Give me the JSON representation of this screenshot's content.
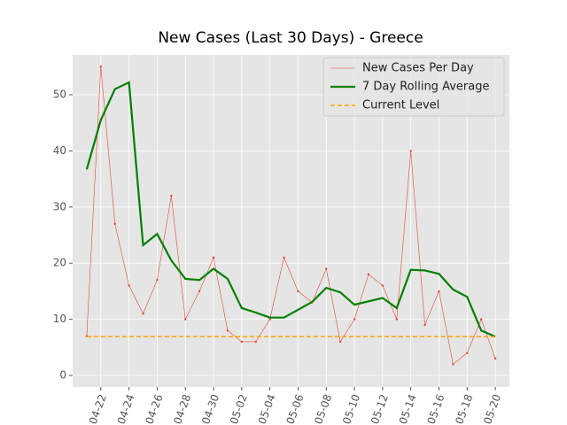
{
  "chart_data": {
    "type": "line",
    "title": "New Cases (Last 30 Days) - Greece",
    "x": [
      "04-21",
      "04-22",
      "04-23",
      "04-24",
      "04-25",
      "04-26",
      "04-27",
      "04-28",
      "04-29",
      "04-30",
      "05-01",
      "05-02",
      "05-03",
      "05-04",
      "05-05",
      "05-06",
      "05-07",
      "05-08",
      "05-09",
      "05-10",
      "05-11",
      "05-12",
      "05-13",
      "05-14",
      "05-15",
      "05-16",
      "05-17",
      "05-18",
      "05-19",
      "05-20"
    ],
    "series": [
      {
        "name": "New Cases Per Day",
        "color": "#e24a33",
        "style": "thin-markers",
        "values": [
          7,
          55,
          27,
          16,
          11,
          17,
          32,
          10,
          15,
          21,
          8,
          6,
          6,
          10,
          21,
          15,
          13,
          19,
          6,
          10,
          18,
          16,
          10,
          40,
          9,
          15,
          2,
          4,
          10,
          3
        ]
      },
      {
        "name": "7 Day Rolling Average",
        "color": "#008000",
        "style": "thick",
        "values": [
          36.7,
          45.5,
          51,
          52.2,
          23.2,
          25.2,
          20.5,
          17.2,
          17,
          19,
          17.2,
          12,
          11.2,
          10.3,
          10.3,
          11.7,
          13.1,
          15.6,
          14.8,
          12.6,
          13.2,
          13.8,
          12,
          18.8,
          18.7,
          18.1,
          15.3,
          14,
          8,
          6.9
        ]
      },
      {
        "name": "Current Level",
        "color": "orange",
        "style": "dashed",
        "level": 6.9
      }
    ],
    "xlim": [
      "04-20",
      "05-21"
    ],
    "xticks": [
      "04-22",
      "04-24",
      "04-26",
      "04-28",
      "04-30",
      "05-02",
      "05-04",
      "05-06",
      "05-08",
      "05-10",
      "05-12",
      "05-14",
      "05-16",
      "05-18",
      "05-20"
    ],
    "ylim": [
      -2.05,
      57.1
    ],
    "yticks": [
      0,
      10,
      20,
      30,
      40,
      50
    ],
    "grid": true,
    "legend": "upper right"
  }
}
